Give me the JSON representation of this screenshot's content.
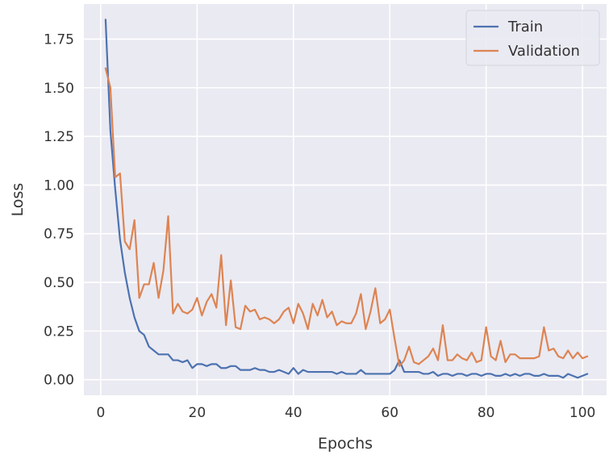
{
  "chart_data": {
    "type": "line",
    "xlabel": "Epochs",
    "ylabel": "Loss",
    "xlim": [
      -3.5,
      105
    ],
    "ylim": [
      -0.08,
      1.93
    ],
    "xticks": [
      0,
      20,
      40,
      60,
      80,
      100
    ],
    "xtick_labels": [
      "0",
      "20",
      "40",
      "60",
      "80",
      "100"
    ],
    "yticks": [
      0.0,
      0.25,
      0.5,
      0.75,
      1.0,
      1.25,
      1.5,
      1.75
    ],
    "ytick_labels": [
      "0.00",
      "0.25",
      "0.50",
      "0.75",
      "1.00",
      "1.25",
      "1.50",
      "1.75"
    ],
    "grid": true,
    "legend_position": "top-right",
    "colors": {
      "background": "#eaeaf2",
      "grid": "#ffffff",
      "Train": "#4c72b0",
      "Validation": "#dd8452"
    },
    "x": [
      1,
      2,
      3,
      4,
      5,
      6,
      7,
      8,
      9,
      10,
      11,
      12,
      13,
      14,
      15,
      16,
      17,
      18,
      19,
      20,
      21,
      22,
      23,
      24,
      25,
      26,
      27,
      28,
      29,
      30,
      31,
      32,
      33,
      34,
      35,
      36,
      37,
      38,
      39,
      40,
      41,
      42,
      43,
      44,
      45,
      46,
      47,
      48,
      49,
      50,
      51,
      52,
      53,
      54,
      55,
      56,
      57,
      58,
      59,
      60,
      61,
      62,
      63,
      64,
      65,
      66,
      67,
      68,
      69,
      70,
      71,
      72,
      73,
      74,
      75,
      76,
      77,
      78,
      79,
      80,
      81,
      82,
      83,
      84,
      85,
      86,
      87,
      88,
      89,
      90,
      91,
      92,
      93,
      94,
      95,
      96,
      97,
      98,
      99,
      100,
      101
    ],
    "series": [
      {
        "name": "Train",
        "values": [
          1.85,
          1.28,
          0.98,
          0.72,
          0.55,
          0.42,
          0.32,
          0.25,
          0.23,
          0.17,
          0.15,
          0.13,
          0.13,
          0.13,
          0.1,
          0.1,
          0.09,
          0.1,
          0.06,
          0.08,
          0.08,
          0.07,
          0.08,
          0.08,
          0.06,
          0.06,
          0.07,
          0.07,
          0.05,
          0.05,
          0.05,
          0.06,
          0.05,
          0.05,
          0.04,
          0.04,
          0.05,
          0.04,
          0.03,
          0.06,
          0.03,
          0.05,
          0.04,
          0.04,
          0.04,
          0.04,
          0.04,
          0.04,
          0.03,
          0.04,
          0.03,
          0.03,
          0.03,
          0.05,
          0.03,
          0.03,
          0.03,
          0.03,
          0.03,
          0.03,
          0.05,
          0.1,
          0.04,
          0.04,
          0.04,
          0.04,
          0.03,
          0.03,
          0.04,
          0.02,
          0.03,
          0.03,
          0.02,
          0.03,
          0.03,
          0.02,
          0.03,
          0.03,
          0.02,
          0.03,
          0.03,
          0.02,
          0.02,
          0.03,
          0.02,
          0.03,
          0.02,
          0.03,
          0.03,
          0.02,
          0.02,
          0.03,
          0.02,
          0.02,
          0.02,
          0.01,
          0.03,
          0.02,
          0.01,
          0.02,
          0.03
        ]
      },
      {
        "name": "Validation",
        "values": [
          1.6,
          1.5,
          1.04,
          1.06,
          0.71,
          0.67,
          0.82,
          0.42,
          0.49,
          0.49,
          0.6,
          0.42,
          0.56,
          0.84,
          0.34,
          0.39,
          0.35,
          0.34,
          0.36,
          0.42,
          0.33,
          0.4,
          0.44,
          0.37,
          0.64,
          0.28,
          0.51,
          0.27,
          0.26,
          0.38,
          0.35,
          0.36,
          0.31,
          0.32,
          0.31,
          0.29,
          0.31,
          0.35,
          0.37,
          0.29,
          0.39,
          0.34,
          0.26,
          0.39,
          0.33,
          0.41,
          0.32,
          0.35,
          0.28,
          0.3,
          0.29,
          0.29,
          0.34,
          0.44,
          0.26,
          0.35,
          0.47,
          0.29,
          0.31,
          0.36,
          0.21,
          0.07,
          0.1,
          0.17,
          0.09,
          0.08,
          0.1,
          0.12,
          0.16,
          0.1,
          0.28,
          0.1,
          0.1,
          0.13,
          0.11,
          0.1,
          0.14,
          0.09,
          0.1,
          0.27,
          0.12,
          0.1,
          0.2,
          0.09,
          0.13,
          0.13,
          0.11,
          0.11,
          0.11,
          0.11,
          0.12,
          0.27,
          0.15,
          0.16,
          0.12,
          0.11,
          0.15,
          0.11,
          0.14,
          0.11,
          0.12
        ]
      }
    ]
  }
}
